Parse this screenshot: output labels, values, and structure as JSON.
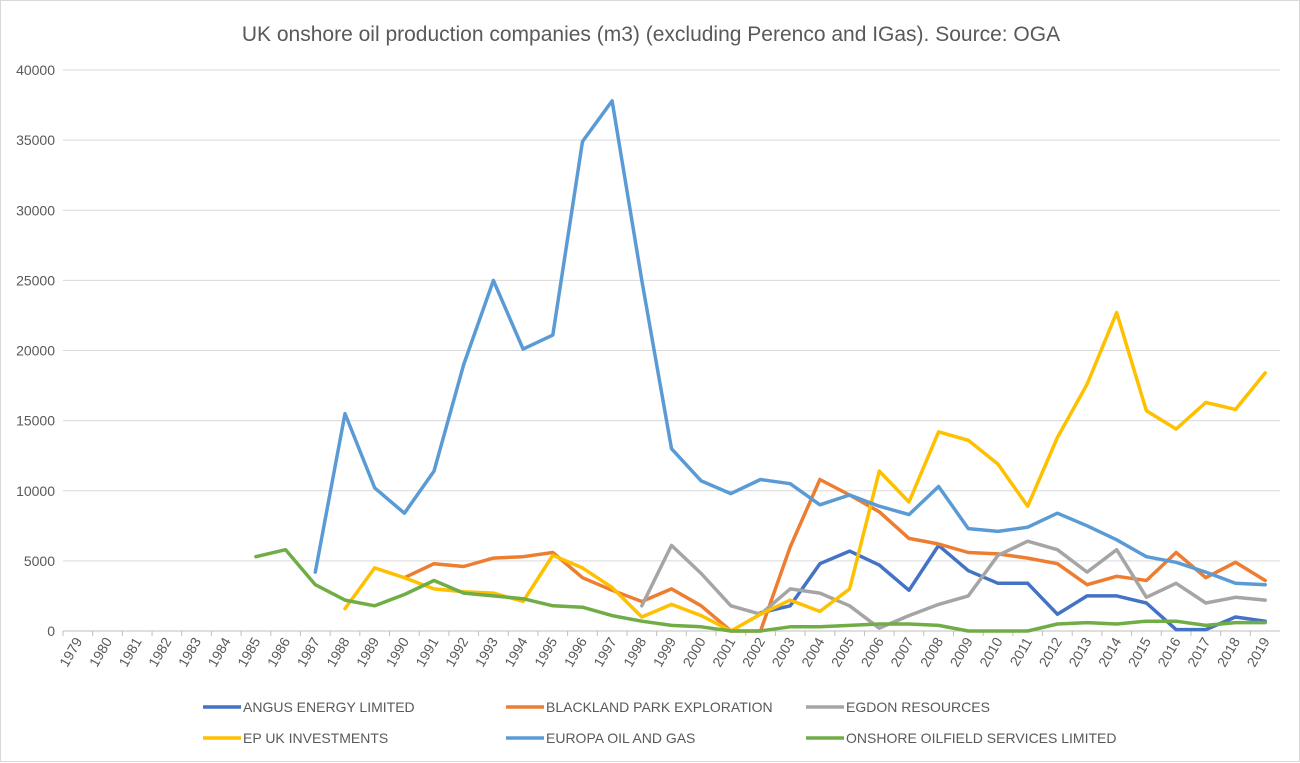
{
  "chart_data": {
    "type": "line",
    "title": "UK onshore oil production companies (m3) (excluding Perenco and IGas). Source: OGA",
    "xlabel": "",
    "ylabel": "",
    "ylim": [
      0,
      40000
    ],
    "yticks": [
      "0",
      "5000",
      "10000",
      "15000",
      "20000",
      "25000",
      "30000",
      "35000",
      "40000"
    ],
    "grid": true,
    "legend_position": "bottom",
    "categories": [
      "1979",
      "1980",
      "1981",
      "1982",
      "1983",
      "1984",
      "1985",
      "1986",
      "1987",
      "1988",
      "1989",
      "1990",
      "1991",
      "1992",
      "1993",
      "1994",
      "1995",
      "1996",
      "1997",
      "1998",
      "1999",
      "2000",
      "2001",
      "2002",
      "2003",
      "2004",
      "2005",
      "2006",
      "2007",
      "2008",
      "2009",
      "2010",
      "2011",
      "2012",
      "2013",
      "2014",
      "2015",
      "2016",
      "2017",
      "2018",
      "2019"
    ],
    "series": [
      {
        "name": "ANGUS ENERGY LIMITED",
        "color": "#4472c4",
        "values": [
          null,
          null,
          null,
          null,
          null,
          null,
          null,
          null,
          null,
          null,
          null,
          null,
          null,
          null,
          null,
          null,
          null,
          null,
          null,
          null,
          null,
          null,
          null,
          1300,
          1800,
          4800,
          5700,
          4700,
          2900,
          6100,
          4300,
          3400,
          3400,
          1200,
          2500,
          2500,
          2000,
          100,
          100,
          1000,
          700
        ]
      },
      {
        "name": "BLACKLAND PARK EXPLORATION",
        "color": "#ed7d31",
        "values": [
          null,
          null,
          null,
          null,
          null,
          null,
          null,
          null,
          null,
          null,
          null,
          3800,
          4800,
          4600,
          5200,
          5300,
          5600,
          3800,
          2900,
          2100,
          3000,
          1800,
          0,
          0,
          6000,
          10800,
          9700,
          8500,
          6600,
          6200,
          5600,
          5500,
          5200,
          4800,
          3300,
          3900,
          3600,
          5600,
          3800,
          4900,
          3600
        ]
      },
      {
        "name": "EGDON RESOURCES",
        "color": "#a5a5a5",
        "values": [
          null,
          null,
          null,
          null,
          null,
          null,
          null,
          null,
          null,
          null,
          null,
          null,
          null,
          null,
          null,
          null,
          null,
          null,
          null,
          1800,
          6100,
          4100,
          1800,
          1200,
          3000,
          2700,
          1800,
          200,
          1100,
          1900,
          2500,
          5400,
          6400,
          5800,
          4200,
          5800,
          2400,
          3400,
          2000,
          2400,
          2200
        ]
      },
      {
        "name": "EP UK INVESTMENTS",
        "color": "#ffc000",
        "values": [
          null,
          null,
          null,
          null,
          null,
          null,
          null,
          null,
          null,
          1600,
          4500,
          3800,
          3000,
          2800,
          2700,
          2100,
          5400,
          4500,
          3100,
          1000,
          1900,
          1100,
          0,
          1200,
          2200,
          1400,
          3000,
          11400,
          9200,
          14200,
          13600,
          11900,
          8900,
          13800,
          17600,
          22700,
          15700,
          14400,
          16300,
          15800,
          18400
        ]
      },
      {
        "name": "EUROPA OIL AND GAS",
        "color": "#5b9bd5",
        "values": [
          null,
          null,
          null,
          null,
          null,
          null,
          null,
          null,
          4200,
          15500,
          10200,
          8400,
          11400,
          19000,
          25000,
          20100,
          21100,
          34900,
          37800,
          25000,
          13000,
          10700,
          9800,
          10800,
          10500,
          9000,
          9700,
          8900,
          8300,
          10300,
          7300,
          7100,
          7400,
          8400,
          7500,
          6500,
          5300,
          4900,
          4200,
          3400,
          3300
        ]
      },
      {
        "name": "ONSHORE OILFIELD SERVICES LIMITED",
        "color": "#70ad47",
        "values": [
          null,
          null,
          null,
          null,
          null,
          null,
          5300,
          5800,
          3300,
          2200,
          1800,
          2600,
          3600,
          2700,
          2500,
          2300,
          1800,
          1700,
          1100,
          700,
          400,
          300,
          0,
          0,
          300,
          300,
          400,
          500,
          500,
          400,
          0,
          0,
          0,
          500,
          600,
          500,
          700,
          700,
          400,
          600,
          600
        ]
      }
    ]
  }
}
